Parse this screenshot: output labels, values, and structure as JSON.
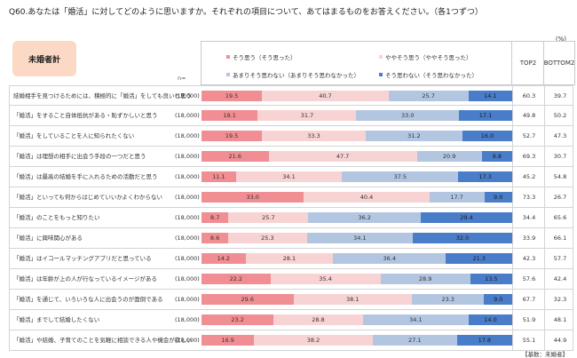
{
  "question": "Q60.あなたは「婚活」に対してどのように思いますか。それぞれの項目について、あてはまるものをお答えください。（各1つずつ）",
  "unit": "(%)",
  "group_label": "未婚者計",
  "n_label": "n=",
  "top2_label": "TOP2",
  "bottom2_label": "BOTTOM2",
  "base_note": "【基数：未婚者】",
  "colors": [
    "#f08e93",
    "#f8d3d3",
    "#b3c6e1",
    "#4a7dc9"
  ],
  "chart_data": {
    "type": "bar",
    "orientation": "horizontal",
    "stacked": true,
    "legend_position": "top",
    "xlim": [
      0,
      100
    ],
    "series": [
      {
        "name": "そう思う（そう思った）",
        "values": [
          19.5,
          18.1,
          19.5,
          21.6,
          11.1,
          33.0,
          8.7,
          8.6,
          14.2,
          22.2,
          29.6,
          23.2,
          16.9
        ]
      },
      {
        "name": "ややそう思う（ややそう思った）",
        "values": [
          40.7,
          31.7,
          33.3,
          47.7,
          34.1,
          40.4,
          25.7,
          25.3,
          28.1,
          35.4,
          38.1,
          28.8,
          38.2
        ]
      },
      {
        "name": "あまりそう思わない（あまりそう思わなかった）",
        "values": [
          25.7,
          33.0,
          31.2,
          20.9,
          37.5,
          17.7,
          36.2,
          34.1,
          36.4,
          28.9,
          23.3,
          34.1,
          27.1
        ]
      },
      {
        "name": "そう思わない（そう思わなかった）",
        "values": [
          14.1,
          17.1,
          16.0,
          9.8,
          17.3,
          9.0,
          29.4,
          32.0,
          21.3,
          13.5,
          9.0,
          14.0,
          17.8
        ]
      }
    ],
    "categories": [
      "結婚相手を見つけるためには、積極的に「婚活」をしても良いと思う",
      "「婚活」をすること自体抵抗がある・恥ずかしいと思う",
      "「婚活」をしていることを人に知られたくない",
      "「婚活」は理想の相手に出会う手段の一つだと思う",
      "「婚活」は最高の結婚を手に入れるための活動だと思う",
      "「婚活」といっても何からはじめていいかよくわからない",
      "「婚活」のことをもっと知りたい",
      "「婚活」に興味関心がある",
      "「婚活」はイコールマッチングアプリだと思っている",
      "「婚活」は年齢が上の人が行なっているイメージがある",
      "「婚活」を通じて、いろいろな人に出会うのが面倒である",
      "「婚活」までして結婚したくない",
      "「婚活」や結婚、子育てのことを気軽に相談できる人や機会が欲しい"
    ],
    "n": [
      "(18,000)",
      "(18,000)",
      "(18,000)",
      "(18,000)",
      "(18,000)",
      "(18,000)",
      "(18,000)",
      "(18,000)",
      "(18,000)",
      "(18,000)",
      "(18,000)",
      "(18,000)",
      "(18,000)"
    ],
    "top2": [
      "60.3",
      "49.8",
      "52.7",
      "69.3",
      "45.2",
      "73.3",
      "34.4",
      "33.9",
      "42.3",
      "57.6",
      "67.7",
      "51.9",
      "55.1"
    ],
    "bottom2": [
      "39.7",
      "50.2",
      "47.3",
      "30.7",
      "54.8",
      "26.7",
      "65.6",
      "66.1",
      "57.7",
      "42.4",
      "32.3",
      "48.1",
      "44.9"
    ]
  }
}
